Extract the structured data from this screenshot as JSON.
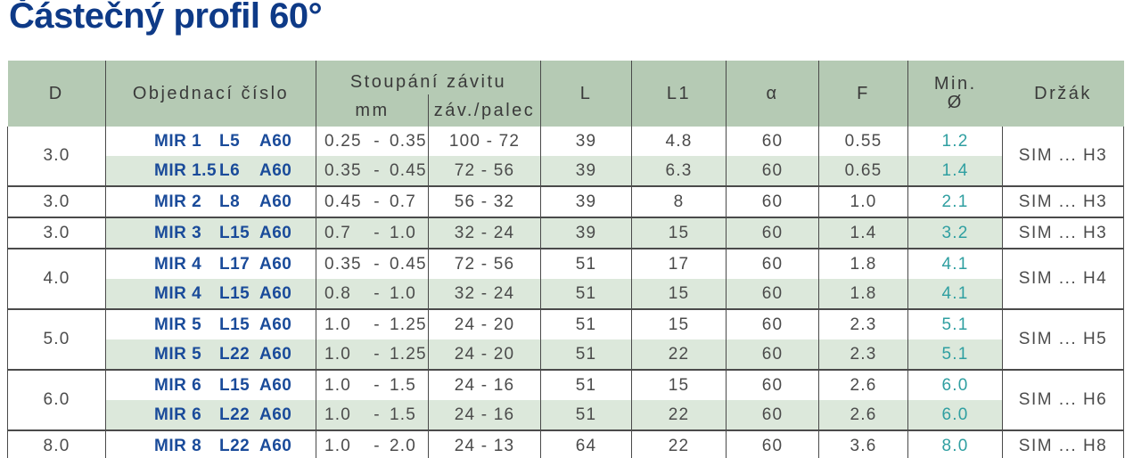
{
  "title": "Částečný profil 60°",
  "colors": {
    "title_navy": "#0e3a87",
    "order_navy": "#1a4b9a",
    "header_green": "#b5cab4",
    "stripe_green": "#dce8db",
    "min_teal": "#2f9fa1",
    "border_gray": "#4a4a4a",
    "text_gray": "#4b4b4b"
  },
  "table": {
    "range_separator": "-",
    "header": {
      "d": "D",
      "order": "Objednací číslo",
      "pitch": "Stoupání závitu",
      "pitch_mm": "mm",
      "pitch_tpi": "záv./palec",
      "l": "L",
      "l1": "L1",
      "alpha": "α",
      "f": "F",
      "min_line1": "Min.",
      "min_line2": "Ø",
      "holder": "Držák"
    },
    "groups": [
      {
        "d": "3.0",
        "holder": "SIM ... H3",
        "rows": [
          {
            "order": [
              "MIR 1",
              "L5",
              "A60"
            ],
            "mm": [
              "0.25",
              "0.35"
            ],
            "tpi": "100 - 72",
            "l": "39",
            "l1": "4.8",
            "alpha": "60",
            "f": "0.55",
            "min": "1.2"
          },
          {
            "order": [
              "MIR 1.5",
              "L6",
              "A60"
            ],
            "mm": [
              "0.35",
              "0.45"
            ],
            "tpi": "72 - 56",
            "l": "39",
            "l1": "6.3",
            "alpha": "60",
            "f": "0.65",
            "min": "1.4"
          }
        ]
      },
      {
        "d": "3.0",
        "holder": "SIM ... H3",
        "rows": [
          {
            "order": [
              "MIR 2",
              "L8",
              "A60"
            ],
            "mm": [
              "0.45",
              "0.7"
            ],
            "tpi": "56 - 32",
            "l": "39",
            "l1": "8",
            "alpha": "60",
            "f": "1.0",
            "min": "2.1"
          }
        ]
      },
      {
        "d": "3.0",
        "holder": "SIM ... H3",
        "rows": [
          {
            "order": [
              "MIR 3",
              "L15",
              "A60"
            ],
            "mm": [
              "0.7",
              "1.0"
            ],
            "tpi": "32 - 24",
            "l": "39",
            "l1": "15",
            "alpha": "60",
            "f": "1.4",
            "min": "3.2"
          }
        ]
      },
      {
        "d": "4.0",
        "holder": "SIM ... H4",
        "rows": [
          {
            "order": [
              "MIR 4",
              "L17",
              "A60"
            ],
            "mm": [
              "0.35",
              "0.45"
            ],
            "tpi": "72 - 56",
            "l": "51",
            "l1": "17",
            "alpha": "60",
            "f": "1.8",
            "min": "4.1"
          },
          {
            "order": [
              "MIR 4",
              "L15",
              "A60"
            ],
            "mm": [
              "0.8",
              "1.0"
            ],
            "tpi": "32 - 24",
            "l": "51",
            "l1": "15",
            "alpha": "60",
            "f": "1.8",
            "min": "4.1"
          }
        ]
      },
      {
        "d": "5.0",
        "holder": "SIM ... H5",
        "rows": [
          {
            "order": [
              "MIR 5",
              "L15",
              "A60"
            ],
            "mm": [
              "1.0",
              "1.25"
            ],
            "tpi": "24 - 20",
            "l": "51",
            "l1": "15",
            "alpha": "60",
            "f": "2.3",
            "min": "5.1"
          },
          {
            "order": [
              "MIR 5",
              "L22",
              "A60"
            ],
            "mm": [
              "1.0",
              "1.25"
            ],
            "tpi": "24 - 20",
            "l": "51",
            "l1": "22",
            "alpha": "60",
            "f": "2.3",
            "min": "5.1"
          }
        ]
      },
      {
        "d": "6.0",
        "holder": "SIM ... H6",
        "rows": [
          {
            "order": [
              "MIR 6",
              "L15",
              "A60"
            ],
            "mm": [
              "1.0",
              "1.5"
            ],
            "tpi": "24 - 16",
            "l": "51",
            "l1": "15",
            "alpha": "60",
            "f": "2.6",
            "min": "6.0"
          },
          {
            "order": [
              "MIR 6",
              "L22",
              "A60"
            ],
            "mm": [
              "1.0",
              "1.5"
            ],
            "tpi": "24 - 16",
            "l": "51",
            "l1": "22",
            "alpha": "60",
            "f": "2.6",
            "min": "6.0"
          }
        ]
      },
      {
        "d": "8.0",
        "holder": "SIM ... H8",
        "rows": [
          {
            "order": [
              "MIR 8",
              "L22",
              "A60"
            ],
            "mm": [
              "1.0",
              "2.0"
            ],
            "tpi": "24 - 13",
            "l": "64",
            "l1": "22",
            "alpha": "60",
            "f": "3.6",
            "min": "8.0"
          }
        ]
      }
    ]
  }
}
